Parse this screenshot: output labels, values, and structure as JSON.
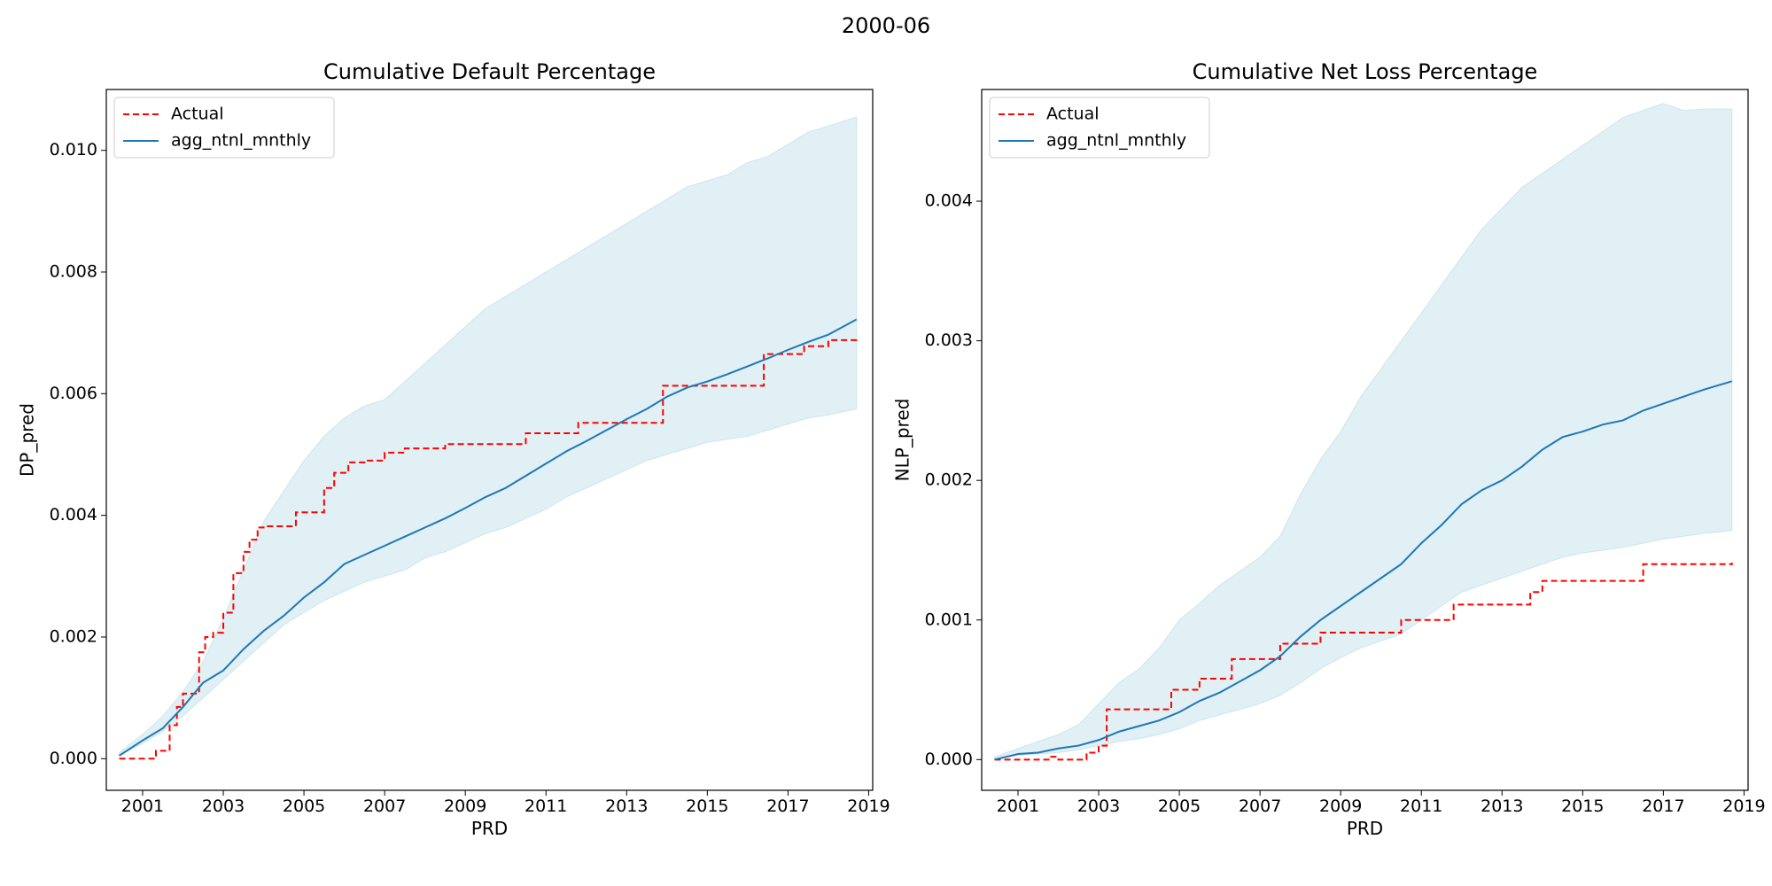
{
  "figure": {
    "suptitle": "2000-06"
  },
  "colors": {
    "actual": "#ff0000",
    "model": "#1f77b4",
    "band": "#add8e6"
  },
  "chart_data": [
    {
      "type": "line",
      "title": "Cumulative Default Percentage",
      "xlabel": "PRD",
      "ylabel": "DP_pred",
      "xlim": [
        2000.1,
        2019.1
      ],
      "ylim": [
        -0.00052,
        0.011
      ],
      "x_ticks": [
        2001,
        2003,
        2005,
        2007,
        2009,
        2011,
        2013,
        2015,
        2017,
        2019
      ],
      "x_tick_labels": [
        "2001",
        "2003",
        "2005",
        "2007",
        "2009",
        "2011",
        "2013",
        "2015",
        "2017",
        "2019"
      ],
      "y_ticks": [
        0.0,
        0.002,
        0.004,
        0.006,
        0.008,
        0.01
      ],
      "y_tick_labels": [
        "0.000",
        "0.002",
        "0.004",
        "0.006",
        "0.008",
        "0.010"
      ],
      "grid": false,
      "legend": {
        "placement": "top-left",
        "entries": [
          "Actual",
          "agg_ntnl_mnthly"
        ]
      },
      "series": [
        {
          "name": "Actual",
          "style": "dashed-step",
          "x": [
            2000.42,
            2001.33,
            2001.67,
            2001.85,
            2002.0,
            2002.4,
            2002.55,
            2002.75,
            2003.0,
            2003.25,
            2003.5,
            2003.65,
            2003.85,
            2004.0,
            2004.8,
            2005.5,
            2005.75,
            2006.1,
            2006.5,
            2007.0,
            2007.5,
            2008.5,
            2010.5,
            2011.8,
            2013.9,
            2016.4,
            2017.4,
            2018.0,
            2018.7
          ],
          "values": [
            0.0,
            0.00013,
            0.00055,
            0.00085,
            0.00107,
            0.00175,
            0.002,
            0.00207,
            0.0024,
            0.00305,
            0.0034,
            0.0036,
            0.0038,
            0.00382,
            0.00405,
            0.00445,
            0.0047,
            0.00487,
            0.0049,
            0.00503,
            0.0051,
            0.00517,
            0.00535,
            0.00552,
            0.00613,
            0.00665,
            0.00678,
            0.00688,
            0.00689
          ]
        },
        {
          "name": "agg_ntnl_mnthly",
          "style": "solid",
          "x": [
            2000.42,
            2001.0,
            2001.5,
            2002.0,
            2002.5,
            2003.0,
            2003.5,
            2004.0,
            2004.5,
            2005.0,
            2005.5,
            2006.0,
            2006.5,
            2007.0,
            2007.5,
            2008.0,
            2008.5,
            2009.0,
            2009.5,
            2010.0,
            2010.5,
            2011.0,
            2011.5,
            2012.0,
            2012.5,
            2013.0,
            2013.5,
            2014.0,
            2014.5,
            2015.0,
            2015.5,
            2016.0,
            2016.5,
            2017.0,
            2017.5,
            2018.0,
            2018.7
          ],
          "values": [
            5e-05,
            0.0003,
            0.0005,
            0.00085,
            0.00125,
            0.00145,
            0.0018,
            0.0021,
            0.00235,
            0.00265,
            0.0029,
            0.0032,
            0.00335,
            0.0035,
            0.00365,
            0.0038,
            0.00395,
            0.00412,
            0.0043,
            0.00445,
            0.00465,
            0.00485,
            0.00505,
            0.00522,
            0.0054,
            0.00558,
            0.00575,
            0.00595,
            0.0061,
            0.0062,
            0.00632,
            0.00645,
            0.00658,
            0.00672,
            0.00685,
            0.00697,
            0.00722
          ]
        }
      ],
      "band": {
        "x": [
          2000.42,
          2001.0,
          2001.5,
          2002.0,
          2002.5,
          2003.0,
          2003.5,
          2004.0,
          2004.5,
          2005.0,
          2005.5,
          2006.0,
          2006.5,
          2007.0,
          2007.5,
          2008.0,
          2008.5,
          2009.0,
          2009.5,
          2010.0,
          2010.5,
          2011.0,
          2011.5,
          2012.0,
          2012.5,
          2013.0,
          2013.5,
          2014.0,
          2014.5,
          2015.0,
          2015.5,
          2016.0,
          2016.5,
          2017.0,
          2017.5,
          2018.0,
          2018.7
        ],
        "lower": [
          5e-05,
          0.00025,
          0.00045,
          0.0007,
          0.001,
          0.0013,
          0.0016,
          0.0019,
          0.0022,
          0.0024,
          0.0026,
          0.00275,
          0.0029,
          0.003,
          0.0031,
          0.0033,
          0.0034,
          0.00355,
          0.0037,
          0.0038,
          0.00395,
          0.0041,
          0.0043,
          0.00445,
          0.0046,
          0.00475,
          0.0049,
          0.005,
          0.0051,
          0.0052,
          0.00525,
          0.0053,
          0.0054,
          0.0055,
          0.0056,
          0.00565,
          0.00575
        ],
        "upper": [
          0.0001,
          0.0004,
          0.0007,
          0.0011,
          0.0016,
          0.0023,
          0.0031,
          0.0039,
          0.0044,
          0.0049,
          0.0053,
          0.0056,
          0.0058,
          0.0059,
          0.0062,
          0.0065,
          0.0068,
          0.0071,
          0.0074,
          0.0076,
          0.0078,
          0.008,
          0.0082,
          0.0084,
          0.0086,
          0.0088,
          0.009,
          0.0092,
          0.0094,
          0.0095,
          0.0096,
          0.0098,
          0.0099,
          0.0101,
          0.0103,
          0.0104,
          0.01055
        ]
      }
    },
    {
      "type": "line",
      "title": "Cumulative Net Loss Percentage",
      "xlabel": "PRD",
      "ylabel": "NLP_pred",
      "xlim": [
        2000.1,
        2019.1
      ],
      "ylim": [
        -0.00022,
        0.0048
      ],
      "x_ticks": [
        2001,
        2003,
        2005,
        2007,
        2009,
        2011,
        2013,
        2015,
        2017,
        2019
      ],
      "x_tick_labels": [
        "2001",
        "2003",
        "2005",
        "2007",
        "2009",
        "2011",
        "2013",
        "2015",
        "2017",
        "2019"
      ],
      "y_ticks": [
        0.0,
        0.001,
        0.002,
        0.003,
        0.004
      ],
      "y_tick_labels": [
        "0.000",
        "0.001",
        "0.002",
        "0.003",
        "0.004"
      ],
      "grid": false,
      "legend": {
        "placement": "top-left",
        "entries": [
          "Actual",
          "agg_ntnl_mnthly"
        ]
      },
      "series": [
        {
          "name": "Actual",
          "style": "dashed-step",
          "x": [
            2000.42,
            2001.8,
            2002.0,
            2002.7,
            2003.0,
            2003.2,
            2004.8,
            2005.5,
            2006.3,
            2007.5,
            2008.5,
            2010.5,
            2011.8,
            2013.7,
            2014.0,
            2016.5,
            2018.7
          ],
          "values": [
            0.0,
            2e-05,
            0.0,
            5e-05,
            0.0001,
            0.00036,
            0.0005,
            0.00058,
            0.00072,
            0.00083,
            0.00091,
            0.001,
            0.00111,
            0.0012,
            0.00128,
            0.0014,
            0.00141
          ]
        },
        {
          "name": "agg_ntnl_mnthly",
          "style": "solid",
          "x": [
            2000.42,
            2001.0,
            2001.5,
            2002.0,
            2002.5,
            2003.0,
            2003.5,
            2004.0,
            2004.5,
            2005.0,
            2005.5,
            2006.0,
            2006.5,
            2007.0,
            2007.5,
            2008.0,
            2008.5,
            2009.0,
            2009.5,
            2010.0,
            2010.5,
            2011.0,
            2011.5,
            2012.0,
            2012.5,
            2013.0,
            2013.5,
            2014.0,
            2014.5,
            2015.0,
            2015.5,
            2016.0,
            2016.5,
            2017.0,
            2017.5,
            2018.0,
            2018.7
          ],
          "values": [
            0.0,
            4e-05,
            5e-05,
            8e-05,
            0.0001,
            0.00014,
            0.0002,
            0.00024,
            0.00028,
            0.00034,
            0.00042,
            0.00048,
            0.00056,
            0.00064,
            0.00074,
            0.00088,
            0.001,
            0.0011,
            0.0012,
            0.0013,
            0.0014,
            0.00155,
            0.00168,
            0.00183,
            0.00193,
            0.002,
            0.0021,
            0.00222,
            0.00231,
            0.00235,
            0.0024,
            0.00243,
            0.0025,
            0.00255,
            0.0026,
            0.00265,
            0.00271
          ]
        }
      ],
      "band": {
        "x": [
          2000.42,
          2001.0,
          2001.5,
          2002.0,
          2002.5,
          2003.0,
          2003.5,
          2004.0,
          2004.5,
          2005.0,
          2005.5,
          2006.0,
          2006.5,
          2007.0,
          2007.5,
          2008.0,
          2008.5,
          2009.0,
          2009.5,
          2010.0,
          2010.5,
          2011.0,
          2011.5,
          2012.0,
          2012.5,
          2013.0,
          2013.5,
          2014.0,
          2014.5,
          2015.0,
          2015.5,
          2016.0,
          2016.5,
          2017.0,
          2017.5,
          2018.0,
          2018.7
        ],
        "lower": [
          0.0,
          3e-05,
          4e-05,
          5e-05,
          7e-05,
          0.0001,
          0.00013,
          0.00015,
          0.00018,
          0.00022,
          0.00028,
          0.00032,
          0.00036,
          0.0004,
          0.00046,
          0.00055,
          0.00065,
          0.00073,
          0.0008,
          0.00085,
          0.0009,
          0.001,
          0.0011,
          0.0012,
          0.00125,
          0.0013,
          0.00135,
          0.0014,
          0.00145,
          0.00148,
          0.0015,
          0.00152,
          0.00155,
          0.00158,
          0.0016,
          0.00162,
          0.00164
        ],
        "upper": [
          2e-05,
          8e-05,
          0.00013,
          0.00018,
          0.00025,
          0.0004,
          0.00055,
          0.00065,
          0.0008,
          0.001,
          0.00112,
          0.00125,
          0.00135,
          0.00145,
          0.0016,
          0.0019,
          0.00215,
          0.00235,
          0.0026,
          0.0028,
          0.003,
          0.0032,
          0.0034,
          0.0036,
          0.0038,
          0.00395,
          0.0041,
          0.0042,
          0.0043,
          0.0044,
          0.0045,
          0.0046,
          0.00465,
          0.0047,
          0.00465,
          0.00466,
          0.00466
        ]
      }
    }
  ]
}
